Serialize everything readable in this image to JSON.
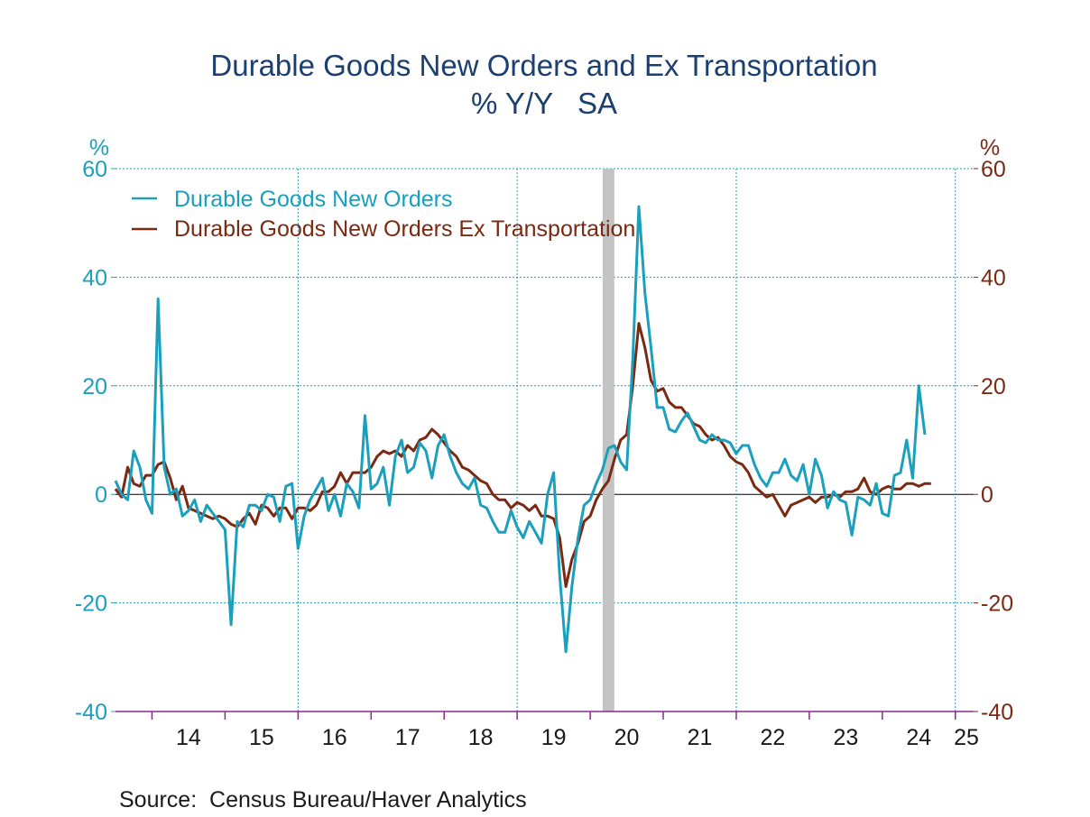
{
  "chart_data": {
    "type": "line",
    "title": "Durable Goods New Orders and Ex Transportation",
    "subtitle": "% Y/Y   SA",
    "left_axis": {
      "unit": "%",
      "ticks": [
        "60",
        "40",
        "20",
        "0",
        "-20",
        "-40"
      ],
      "range": [
        -40,
        60
      ],
      "color": "#1aa0bd"
    },
    "right_axis": {
      "unit": "%",
      "ticks": [
        "60",
        "40",
        "20",
        "0",
        "-20",
        "-40"
      ],
      "range": [
        -40,
        60
      ],
      "color": "#7a2a12"
    },
    "x_range": [
      2013.5,
      2025.25
    ],
    "x_tick_labels": [
      "14",
      "15",
      "16",
      "17",
      "18",
      "19",
      "20",
      "21",
      "22",
      "23",
      "24",
      "25"
    ],
    "vertical_gridlines": [
      2016,
      2019,
      2022,
      2025
    ],
    "recession_shading": [
      [
        2020.17,
        2020.33
      ]
    ],
    "legend_position": "top-left",
    "source": "Source:  Census Bureau/Haver Analytics",
    "series": [
      {
        "name": "Durable Goods New Orders",
        "color": "#1aa0bd",
        "start": 2013.5,
        "step": 0.08333,
        "values": [
          2.5,
          0,
          -1,
          8,
          5,
          -1,
          -3.5,
          36,
          5,
          0,
          1,
          -4,
          -3,
          -1,
          -5,
          -2,
          -3.5,
          -5,
          -6.5,
          -24,
          -5,
          -6,
          -2,
          -2,
          -3,
          0,
          -0.5,
          -5,
          1.5,
          2,
          -10,
          -4,
          -1,
          1,
          3,
          -3,
          0,
          -4,
          2,
          0.5,
          -2.5,
          14.5,
          1,
          2,
          5,
          -2,
          7,
          10,
          4,
          5,
          9.5,
          8,
          3,
          9,
          11,
          7,
          4,
          2,
          1,
          3,
          -2,
          -2.5,
          -5,
          -7,
          -7,
          -3,
          -6,
          -8,
          -5,
          -7,
          -9,
          0,
          4,
          -15,
          -29,
          -17,
          -8,
          -2,
          -1,
          2,
          4.5,
          8.5,
          9,
          6,
          4.5,
          25,
          53,
          37,
          27,
          16,
          16,
          12,
          11.5,
          13.5,
          15,
          12.5,
          10,
          9.5,
          11,
          10,
          10,
          9.5,
          7.5,
          9,
          9,
          5.5,
          3,
          1.5,
          4,
          4,
          6.5,
          3.5,
          2.5,
          5.5,
          0,
          6.5,
          3.5,
          -2.5,
          0.5,
          -1,
          -1.5,
          -7.5,
          -0.5,
          -1,
          -2,
          2,
          -3.5,
          -4,
          3.5,
          4,
          10,
          3,
          20,
          11
        ]
      },
      {
        "name": "Durable Goods New Orders Ex Transportation",
        "color": "#7a2a12",
        "start": 2013.5,
        "step": 0.08333,
        "values": [
          1,
          -0.5,
          5,
          2,
          1.5,
          3.5,
          3.5,
          5.5,
          6,
          3,
          -1,
          1.5,
          -2.5,
          -3,
          -3.5,
          -4,
          -4.5,
          -4,
          -4.5,
          -5.5,
          -6,
          -4.5,
          -3.5,
          -5.5,
          -2,
          -2.5,
          -4,
          -2.5,
          -2.5,
          -4.5,
          -2.5,
          -2.5,
          -3,
          -2,
          0.5,
          0.5,
          1.5,
          4,
          2,
          4,
          4,
          4,
          5,
          7,
          8,
          7.5,
          8,
          7,
          9,
          8,
          10,
          10.5,
          12,
          11,
          9.5,
          8,
          7,
          5,
          4.5,
          3.5,
          2.5,
          2,
          0,
          -1,
          -1,
          -2.5,
          -1.5,
          -2,
          -3,
          -2,
          -4,
          -4,
          -4.5,
          -8,
          -17,
          -12,
          -9,
          -5,
          -4,
          -1,
          1,
          2.5,
          6.5,
          10,
          11,
          20,
          31.5,
          27,
          21,
          19,
          19.5,
          17,
          16,
          16,
          14.5,
          13,
          12.5,
          11,
          10,
          10.5,
          9,
          7,
          6,
          5.5,
          4,
          1.5,
          0.5,
          -0.5,
          0,
          -2,
          -4,
          -2,
          -1.5,
          -1,
          -0.5,
          -1.5,
          -0.5,
          -0.5,
          0,
          -0.5,
          0.5,
          0.5,
          1,
          3,
          0.5,
          0,
          1,
          1.5,
          1,
          1,
          2,
          2,
          1.5,
          2,
          2
        ]
      }
    ]
  }
}
